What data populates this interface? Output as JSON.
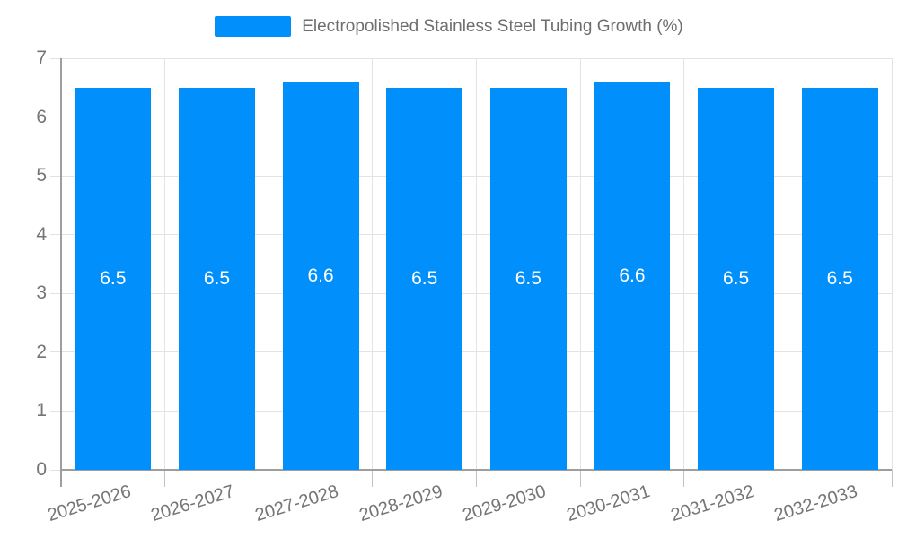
{
  "legend": {
    "label": "Electropolished Stainless Steel Tubing Growth (%)"
  },
  "chart_data": {
    "type": "bar",
    "title": "",
    "xlabel": "",
    "ylabel": "",
    "categories": [
      "2025-2026",
      "2026-2027",
      "2027-2028",
      "2028-2029",
      "2029-2030",
      "2030-2031",
      "2031-2032",
      "2032-2033"
    ],
    "series": [
      {
        "name": "Electropolished Stainless Steel Tubing Growth (%)",
        "values": [
          6.5,
          6.5,
          6.6,
          6.5,
          6.5,
          6.6,
          6.5,
          6.5
        ]
      }
    ],
    "value_labels": [
      "6.5",
      "6.5",
      "6.6",
      "6.5",
      "6.5",
      "6.6",
      "6.5",
      "6.5"
    ],
    "ylim": [
      0,
      7
    ],
    "yticks": [
      0,
      1,
      2,
      3,
      4,
      5,
      6,
      7
    ],
    "grid": true,
    "legend_position": "top",
    "x_label_rotation_deg": -17,
    "colors": {
      "bar": "#008FFB",
      "grid": "#e3e3e3",
      "axis": "#9e9e9e",
      "tick_label": "#757575",
      "legend_text": "#6e6e6e",
      "value_label": "#ffffff",
      "background": "#ffffff"
    }
  }
}
